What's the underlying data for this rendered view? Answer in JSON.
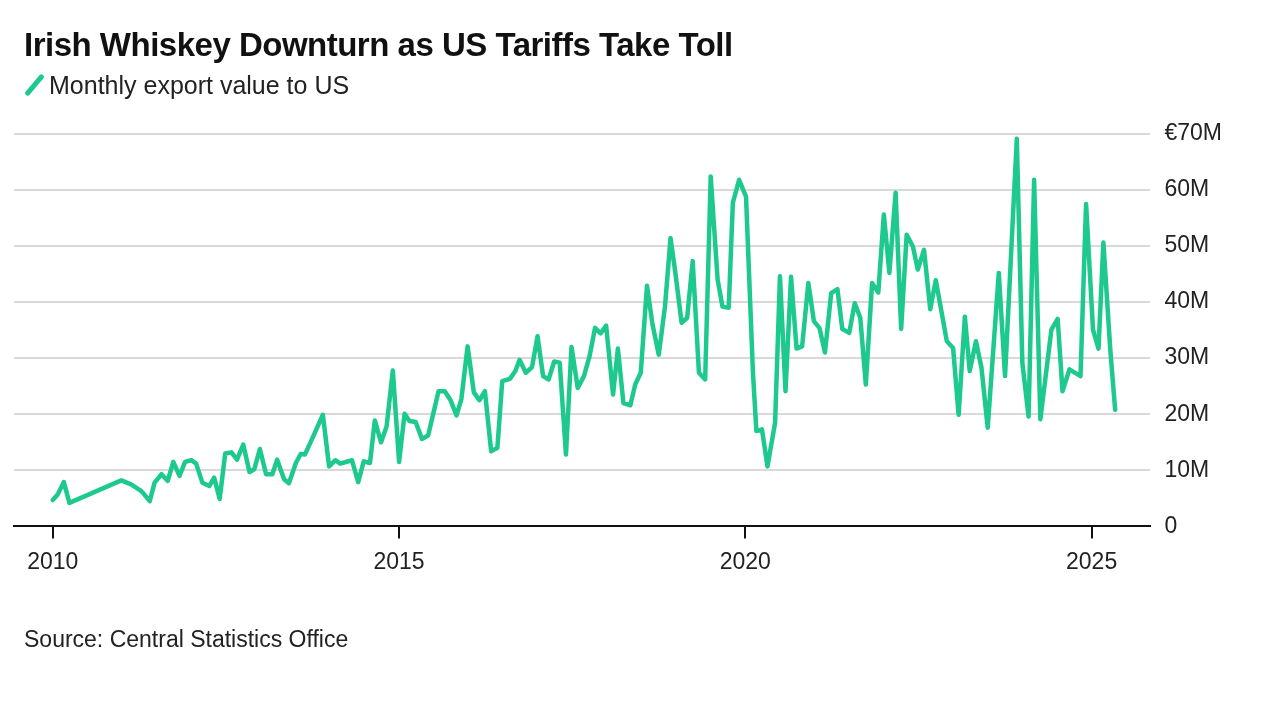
{
  "chart_data": {
    "type": "line",
    "title": "Irish Whiskey Downturn as US Tariffs Take Toll",
    "legend": "top left",
    "grid": "y",
    "annotations": [
      "Source: Central Statistics Office"
    ],
    "xlim": [
      2009.44,
      2025.85
    ],
    "xticks": [
      2010,
      2015,
      2020,
      2025
    ],
    "ylim": [
      0,
      70
    ],
    "yticks": [
      {
        "value": 0,
        "label": "0"
      },
      {
        "value": 10,
        "label": "10M"
      },
      {
        "value": 20,
        "label": "20M"
      },
      {
        "value": 30,
        "label": "30M"
      },
      {
        "value": 40,
        "label": "40M"
      },
      {
        "value": 50,
        "label": "50M"
      },
      {
        "value": 60,
        "label": "60M"
      },
      {
        "value": 70,
        "label": "€70M"
      }
    ],
    "series": [
      {
        "name": "Monthly export value to US",
        "color": "#1dc98c",
        "x": [
          2010.0,
          2010.07,
          2010.16,
          2010.24,
          2010.99,
          2011.13,
          2011.28,
          2011.4,
          2011.47,
          2011.57,
          2011.66,
          2011.74,
          2011.83,
          2011.91,
          2012.0,
          2012.07,
          2012.16,
          2012.26,
          2012.33,
          2012.41,
          2012.49,
          2012.58,
          2012.66,
          2012.75,
          2012.84,
          2012.91,
          2012.99,
          2013.08,
          2013.17,
          2013.24,
          2013.34,
          2013.41,
          2013.51,
          2013.58,
          2013.64,
          2013.73,
          2013.9,
          2013.99,
          2014.08,
          2014.15,
          2014.32,
          2014.41,
          2014.49,
          2014.58,
          2014.65,
          2014.74,
          2014.82,
          2014.91,
          2015.0,
          2015.08,
          2015.15,
          2015.24,
          2015.33,
          2015.42,
          2015.57,
          2015.66,
          2015.74,
          2015.83,
          2015.9,
          2015.99,
          2016.08,
          2016.16,
          2016.24,
          2016.33,
          2016.42,
          2016.49,
          2016.6,
          2016.68,
          2016.74,
          2016.83,
          2016.92,
          2017.0,
          2017.08,
          2017.16,
          2017.24,
          2017.32,
          2017.41,
          2017.49,
          2017.58,
          2017.67,
          2017.75,
          2017.83,
          2017.91,
          2017.99,
          2018.09,
          2018.16,
          2018.24,
          2018.34,
          2018.41,
          2018.49,
          2018.58,
          2018.66,
          2018.75,
          2018.84,
          2018.92,
          2018.99,
          2019.08,
          2019.16,
          2019.24,
          2019.33,
          2019.42,
          2019.5,
          2019.6,
          2019.67,
          2019.76,
          2019.82,
          2019.91,
          2020.01,
          2020.11,
          2020.16,
          2020.24,
          2020.32,
          2020.43,
          2020.5,
          2020.58,
          2020.66,
          2020.74,
          2020.82,
          2020.91,
          2020.99,
          2021.07,
          2021.15,
          2021.24,
          2021.33,
          2021.4,
          2021.5,
          2021.58,
          2021.66,
          2021.74,
          2021.83,
          2021.92,
          2022.0,
          2022.08,
          2022.17,
          2022.25,
          2022.33,
          2022.42,
          2022.49,
          2022.58,
          2022.67,
          2022.75,
          2022.91,
          2023.0,
          2023.08,
          2023.17,
          2023.24,
          2023.33,
          2023.41,
          2023.5,
          2023.66,
          2023.75,
          2023.92,
          2024.0,
          2024.09,
          2024.17,
          2024.26,
          2024.42,
          2024.51,
          2024.58,
          2024.68,
          2024.84,
          2024.92,
          2025.02,
          2025.1,
          2025.17,
          2025.27,
          2025.34
        ],
        "values": [
          4.7,
          5.7,
          7.9,
          4.2,
          8.2,
          7.5,
          6.3,
          4.5,
          7.8,
          9.3,
          8.1,
          11.5,
          9.0,
          11.5,
          11.8,
          11.2,
          7.8,
          7.2,
          8.7,
          4.9,
          13.0,
          13.2,
          11.9,
          14.6,
          9.7,
          10.2,
          13.8,
          9.3,
          9.3,
          11.9,
          8.4,
          7.7,
          11.3,
          12.9,
          12.8,
          15.2,
          19.9,
          10.7,
          11.8,
          11.2,
          11.8,
          7.9,
          11.6,
          11.3,
          18.9,
          15.0,
          17.8,
          27.8,
          11.5,
          20.1,
          18.8,
          18.6,
          15.6,
          16.2,
          24.1,
          24.1,
          22.6,
          19.8,
          22.7,
          32.1,
          23.9,
          22.5,
          24.1,
          13.4,
          14.0,
          25.9,
          26.3,
          27.7,
          29.7,
          27.4,
          28.4,
          33.9,
          26.8,
          26.2,
          29.4,
          29.2,
          12.8,
          32.0,
          24.7,
          26.8,
          30.3,
          35.4,
          34.4,
          35.8,
          23.5,
          31.7,
          22.0,
          21.6,
          25.3,
          27.4,
          42.9,
          36.0,
          30.6,
          39.2,
          51.4,
          45.2,
          36.3,
          37.2,
          47.3,
          27.4,
          26.2,
          62.4,
          44.0,
          39.2,
          39.0,
          57.7,
          61.8,
          58.8,
          27.4,
          17.0,
          17.3,
          10.7,
          18.5,
          44.6,
          24.1,
          44.5,
          31.7,
          32.1,
          43.4,
          36.6,
          35.4,
          31.0,
          41.6,
          42.3,
          35.2,
          34.5,
          39.8,
          37.2,
          25.3,
          43.4,
          41.7,
          55.6,
          45.2,
          59.5,
          35.2,
          52.0,
          49.9,
          45.8,
          49.3,
          38.7,
          43.9,
          33.0,
          31.8,
          19.9,
          37.4,
          27.7,
          33.0,
          28.3,
          17.6,
          45.2,
          26.8,
          69.1,
          29.2,
          19.6,
          61.8,
          19.1,
          35.1,
          37.0,
          24.1,
          28.0,
          26.8,
          57.5,
          35.1,
          31.7,
          50.6,
          31.5,
          20.8
        ]
      }
    ]
  }
}
